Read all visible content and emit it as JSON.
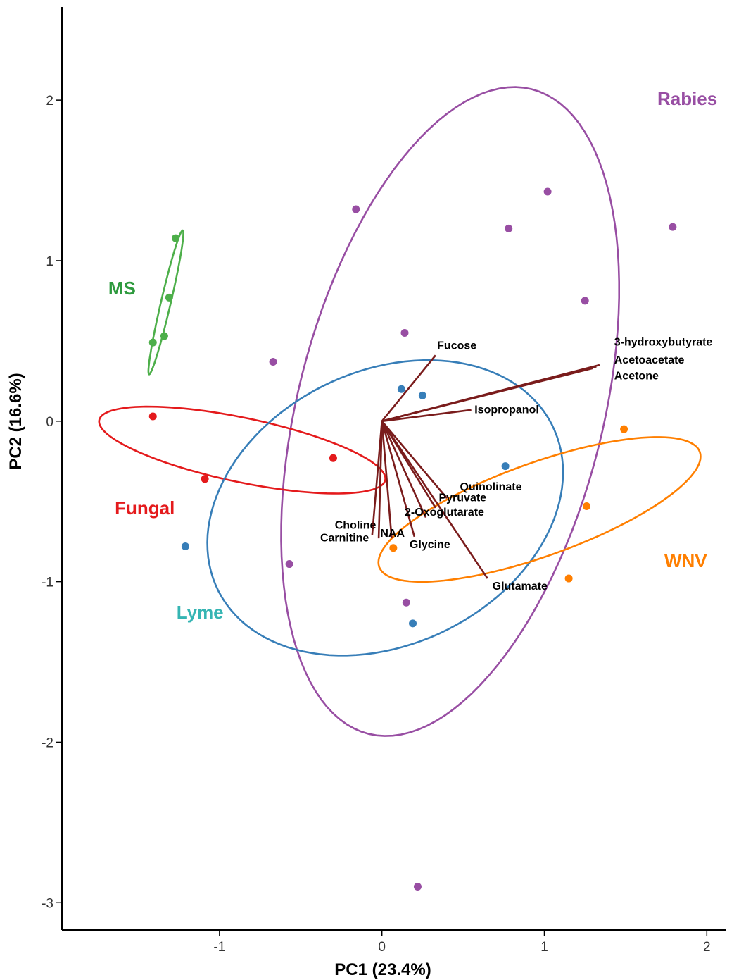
{
  "chart_data": {
    "type": "scatter",
    "title": "",
    "xlabel": "PC1 (23.4%)",
    "ylabel": "PC2 (16.6%)",
    "xlim": [
      -1.97,
      2.12
    ],
    "ylim": [
      -3.17,
      2.58
    ],
    "xticks": [
      -1,
      0,
      1,
      2
    ],
    "yticks": [
      -3,
      -2,
      -1,
      0,
      1,
      2
    ],
    "xtick_labels": [
      "-1",
      "0",
      "1",
      "2"
    ],
    "ytick_labels": [
      "-3",
      "-2",
      "-1",
      "0",
      "1",
      "2"
    ],
    "grid": false,
    "legend": "none",
    "series": [
      {
        "name": "Rabies",
        "color": "#984ea3",
        "points": [
          [
            -0.16,
            1.32
          ],
          [
            1.02,
            1.43
          ],
          [
            0.78,
            1.2
          ],
          [
            1.79,
            1.21
          ],
          [
            1.25,
            0.75
          ],
          [
            0.14,
            0.55
          ],
          [
            -0.67,
            0.37
          ],
          [
            -0.57,
            -0.89
          ],
          [
            0.15,
            -1.13
          ],
          [
            0.22,
            -2.9
          ]
        ],
        "ellipse": {
          "cx": 0.42,
          "cy": 0.06,
          "rx": 2.07,
          "ry": 0.94,
          "angle_deg": 76
        }
      },
      {
        "name": "MS",
        "color": "#4daf4a",
        "points": [
          [
            -1.27,
            1.14
          ],
          [
            -1.31,
            0.77
          ],
          [
            -1.34,
            0.53
          ],
          [
            -1.41,
            0.49
          ]
        ],
        "ellipse": {
          "cx": -1.33,
          "cy": 0.74,
          "rx": 0.46,
          "ry": 0.03,
          "angle_deg": 77
        }
      },
      {
        "name": "Fungal",
        "color": "#e41a1c",
        "points": [
          [
            -1.41,
            0.03
          ],
          [
            -1.09,
            -0.36
          ],
          [
            -0.3,
            -0.23
          ]
        ],
        "ellipse": {
          "cx": -0.86,
          "cy": -0.18,
          "rx": 0.9,
          "ry": 0.2,
          "angle_deg": -12
        }
      },
      {
        "name": "Lyme",
        "color": "#377eb8",
        "points": [
          [
            0.12,
            0.2
          ],
          [
            0.25,
            0.16
          ],
          [
            0.76,
            -0.28
          ],
          [
            -1.21,
            -0.78
          ],
          [
            0.19,
            -1.26
          ]
        ],
        "ellipse": {
          "cx": 0.02,
          "cy": -0.54,
          "rx": 1.15,
          "ry": 0.85,
          "angle_deg": 27
        }
      },
      {
        "name": "WNV",
        "color": "#ff7f00",
        "points": [
          [
            1.49,
            -0.05
          ],
          [
            1.26,
            -0.53
          ],
          [
            0.07,
            -0.79
          ],
          [
            1.15,
            -0.98
          ]
        ],
        "ellipse": {
          "cx": 0.97,
          "cy": -0.55,
          "rx": 1.05,
          "ry": 0.29,
          "angle_deg": 20
        }
      }
    ],
    "group_labels": [
      {
        "text": "Rabies",
        "color": "#984ea3",
        "x": 1.88,
        "y": 2.0
      },
      {
        "text": "MS",
        "color": "#2e9a3e",
        "x": -1.6,
        "y": 0.82
      },
      {
        "text": "Fungal",
        "color": "#e41a1c",
        "x": -1.46,
        "y": -0.55
      },
      {
        "text": "Lyme",
        "color": "#35b5b3",
        "x": -1.12,
        "y": -1.2
      },
      {
        "text": "WNV",
        "color": "#ff7f00",
        "x": 1.87,
        "y": -0.88
      }
    ],
    "loadings": [
      {
        "name": "Fucose",
        "x": 0.33,
        "y": 0.41
      },
      {
        "name": "3-hydroxybutyrate",
        "x": 1.34,
        "y": 0.35
      },
      {
        "name": "Acetoacetate",
        "x": 1.32,
        "y": 0.34
      },
      {
        "name": "Acetone",
        "x": 1.3,
        "y": 0.33
      },
      {
        "name": "Isopropanol",
        "x": 0.55,
        "y": 0.07
      },
      {
        "name": "Quinolinate",
        "x": 0.4,
        "y": -0.48
      },
      {
        "name": "Pyruvate",
        "x": 0.33,
        "y": -0.54
      },
      {
        "name": "2-Oxoglutarate",
        "x": 0.27,
        "y": -0.6
      },
      {
        "name": "Glutamate",
        "x": 0.65,
        "y": -0.98
      },
      {
        "name": "Choline",
        "x": -0.06,
        "y": -0.71
      },
      {
        "name": "Carnitine",
        "x": -0.02,
        "y": -0.73
      },
      {
        "name": "NAA",
        "x": 0.06,
        "y": -0.73
      },
      {
        "name": "Glycine",
        "x": 0.2,
        "y": -0.72
      }
    ],
    "loading_color": "#7a1c1c",
    "loading_labels": [
      {
        "text": "Fucose",
        "x": 0.34,
        "y": 0.45
      },
      {
        "text": "3-hydroxybutyrate",
        "x": 1.43,
        "y": 0.47
      },
      {
        "text": "Acetoacetate",
        "x": 1.43,
        "y": 0.36
      },
      {
        "text": "Acetone",
        "x": 1.43,
        "y": 0.26
      },
      {
        "text": "Isopropanol",
        "x": 0.57,
        "y": 0.05
      },
      {
        "text": "Quinolinate",
        "x": 0.48,
        "y": -0.43
      },
      {
        "text": "Pyruvate",
        "x": 0.35,
        "y": -0.5
      },
      {
        "text": "2-Oxoglutarate",
        "x": 0.14,
        "y": -0.59
      },
      {
        "text": "Glutamate",
        "x": 0.68,
        "y": -1.05
      },
      {
        "text": "Choline",
        "x": -0.29,
        "y": -0.67
      },
      {
        "text": "Carnitine",
        "x": -0.38,
        "y": -0.75
      },
      {
        "text": "NAA",
        "x": -0.01,
        "y": -0.72
      },
      {
        "text": "Glycine",
        "x": 0.17,
        "y": -0.79
      }
    ]
  }
}
